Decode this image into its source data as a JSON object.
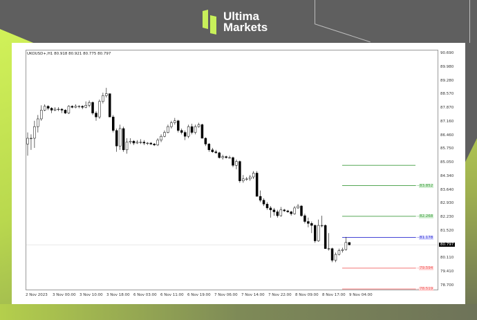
{
  "brand": {
    "line1": "Ultima",
    "line2": "Markets",
    "accent": "#c8f05a"
  },
  "chart": {
    "symbol_header": "UKOUSD+,H1  80.918 80.921 80.775 80.797",
    "y_ticks": [
      "90.690",
      "89.980",
      "89.280",
      "88.570",
      "87.870",
      "87.160",
      "86.460",
      "85.750",
      "85.050",
      "84.340",
      "83.640",
      "82.930",
      "82.230",
      "81.520",
      "80.110",
      "79.410",
      "78.700"
    ],
    "x_ticks": [
      "2 Nov 2023",
      "3 Nov 00:00",
      "3 Nov 10:00",
      "3 Nov 18:00",
      "6 Nov 03:00",
      "6 Nov 11:00",
      "6 Nov 19:00",
      "7 Nov 06:00",
      "7 Nov 14:00",
      "7 Nov 22:00",
      "8 Nov 09:00",
      "8 Nov 17:00",
      "9 Nov 04:00"
    ],
    "current_price": "80.797"
  },
  "chart_data": {
    "type": "candlestick",
    "ylim": [
      78.7,
      90.69
    ],
    "levels": [
      {
        "value": 84.9,
        "label": "",
        "color": "#3c9a3c"
      },
      {
        "value": 83.852,
        "label": "83.852",
        "color": "#3c9a3c"
      },
      {
        "value": 82.268,
        "label": "82.268",
        "color": "#3c9a3c"
      },
      {
        "value": 81.178,
        "label": "81.178",
        "color": "#2a2ad0"
      },
      {
        "value": 79.594,
        "label": "79.594",
        "color": "#f06060"
      },
      {
        "value": 78.519,
        "label": "78.519",
        "color": "#f06060"
      }
    ],
    "ohlc": [
      [
        86.0,
        86.6,
        85.4,
        86.3
      ],
      [
        86.3,
        86.5,
        85.7,
        86.3
      ],
      [
        86.3,
        87.2,
        85.8,
        86.9
      ],
      [
        86.9,
        87.5,
        86.6,
        87.3
      ],
      [
        87.3,
        88.0,
        87.2,
        87.75
      ],
      [
        87.75,
        88.05,
        87.7,
        87.95
      ],
      [
        87.95,
        88.0,
        87.75,
        87.85
      ],
      [
        87.85,
        87.9,
        87.6,
        87.75
      ],
      [
        87.75,
        87.9,
        87.7,
        87.8
      ],
      [
        87.8,
        87.9,
        87.7,
        87.8
      ],
      [
        87.8,
        87.85,
        87.6,
        87.75
      ],
      [
        87.75,
        87.8,
        87.55,
        87.6
      ],
      [
        87.6,
        88.0,
        87.55,
        87.95
      ],
      [
        87.95,
        88.0,
        87.85,
        87.9
      ],
      [
        87.9,
        88.05,
        87.85,
        87.95
      ],
      [
        87.95,
        88.0,
        87.85,
        87.95
      ],
      [
        87.95,
        88.0,
        87.8,
        87.9
      ],
      [
        87.9,
        88.2,
        87.85,
        88.0
      ],
      [
        88.0,
        88.25,
        87.9,
        88.15
      ],
      [
        88.15,
        88.2,
        87.5,
        87.6
      ],
      [
        87.6,
        87.7,
        87.2,
        87.4
      ],
      [
        87.4,
        88.3,
        87.3,
        88.2
      ],
      [
        88.2,
        88.65,
        88.1,
        88.5
      ],
      [
        88.5,
        88.9,
        88.4,
        88.6
      ],
      [
        88.6,
        88.6,
        87.4,
        87.4
      ],
      [
        87.4,
        87.5,
        86.6,
        86.7
      ],
      [
        86.7,
        86.8,
        85.6,
        85.9
      ],
      [
        85.9,
        87.0,
        85.7,
        86.8
      ],
      [
        86.8,
        86.9,
        85.6,
        85.7
      ],
      [
        85.7,
        86.3,
        85.5,
        86.1
      ],
      [
        86.1,
        86.3,
        86.0,
        86.15
      ],
      [
        86.15,
        86.2,
        85.95,
        86.05
      ],
      [
        86.05,
        86.2,
        86.0,
        86.1
      ],
      [
        86.1,
        86.25,
        86.0,
        86.1
      ],
      [
        86.1,
        86.2,
        85.95,
        86.05
      ],
      [
        86.05,
        86.1,
        85.95,
        86.05
      ],
      [
        86.05,
        86.1,
        85.95,
        86.0
      ],
      [
        86.0,
        86.05,
        85.9,
        85.95
      ],
      [
        85.95,
        86.3,
        85.9,
        86.2
      ],
      [
        86.2,
        86.5,
        86.1,
        86.4
      ],
      [
        86.4,
        86.7,
        86.35,
        86.6
      ],
      [
        86.6,
        87.0,
        86.55,
        86.9
      ],
      [
        86.9,
        87.2,
        86.8,
        87.1
      ],
      [
        87.1,
        87.35,
        87.0,
        87.2
      ],
      [
        87.2,
        87.25,
        86.6,
        86.7
      ],
      [
        86.7,
        86.8,
        86.5,
        86.6
      ],
      [
        86.6,
        86.7,
        86.2,
        86.4
      ],
      [
        86.4,
        87.0,
        86.3,
        86.9
      ],
      [
        86.9,
        87.05,
        86.5,
        86.6
      ],
      [
        86.6,
        87.0,
        86.5,
        86.9
      ],
      [
        86.9,
        87.1,
        86.85,
        87.0
      ],
      [
        87.0,
        87.05,
        86.3,
        86.3
      ],
      [
        86.3,
        86.35,
        85.9,
        86.0
      ],
      [
        86.0,
        86.05,
        85.6,
        85.7
      ],
      [
        85.7,
        85.8,
        85.55,
        85.6
      ],
      [
        85.6,
        85.7,
        85.5,
        85.55
      ],
      [
        85.55,
        85.6,
        85.25,
        85.3
      ],
      [
        85.3,
        85.45,
        85.2,
        85.35
      ],
      [
        85.35,
        85.4,
        85.25,
        85.3
      ],
      [
        85.3,
        85.4,
        85.25,
        85.3
      ],
      [
        85.3,
        85.35,
        84.8,
        84.9
      ],
      [
        84.9,
        85.2,
        84.7,
        85.1
      ],
      [
        85.1,
        85.15,
        84.0,
        84.1
      ],
      [
        84.1,
        84.4,
        84.0,
        84.2
      ],
      [
        84.2,
        84.3,
        84.1,
        84.2
      ],
      [
        84.2,
        84.4,
        84.1,
        84.3
      ],
      [
        84.3,
        84.6,
        84.2,
        84.5
      ],
      [
        84.5,
        84.6,
        83.3,
        83.3
      ],
      [
        83.3,
        83.6,
        83.0,
        83.1
      ],
      [
        83.1,
        83.2,
        82.8,
        82.9
      ],
      [
        82.9,
        83.0,
        82.6,
        82.7
      ],
      [
        82.7,
        82.8,
        82.2,
        82.6
      ],
      [
        82.6,
        82.7,
        82.3,
        82.5
      ],
      [
        82.5,
        82.6,
        82.2,
        82.3
      ],
      [
        82.3,
        82.75,
        82.25,
        82.6
      ],
      [
        82.6,
        82.65,
        82.5,
        82.55
      ],
      [
        82.55,
        82.6,
        82.45,
        82.5
      ],
      [
        82.5,
        82.55,
        82.3,
        82.4
      ],
      [
        82.4,
        82.8,
        82.35,
        82.7
      ],
      [
        82.7,
        82.9,
        82.65,
        82.8
      ],
      [
        82.8,
        82.85,
        82.25,
        82.3
      ],
      [
        82.3,
        82.4,
        81.9,
        82.0
      ],
      [
        82.0,
        82.2,
        81.7,
        81.9
      ],
      [
        81.9,
        82.0,
        81.4,
        81.8
      ],
      [
        81.8,
        81.85,
        80.9,
        81.0
      ],
      [
        81.0,
        82.1,
        80.95,
        81.8
      ],
      [
        81.8,
        82.3,
        81.7,
        81.8
      ],
      [
        81.8,
        81.85,
        80.6,
        80.6
      ],
      [
        80.6,
        81.4,
        80.5,
        80.6
      ],
      [
        80.6,
        80.65,
        79.9,
        80.0
      ],
      [
        80.0,
        80.4,
        79.9,
        80.3
      ],
      [
        80.3,
        80.6,
        80.25,
        80.5
      ],
      [
        80.5,
        80.65,
        80.4,
        80.55
      ],
      [
        80.55,
        81.2,
        80.5,
        80.918
      ],
      [
        80.918,
        80.921,
        80.775,
        80.797
      ]
    ]
  }
}
